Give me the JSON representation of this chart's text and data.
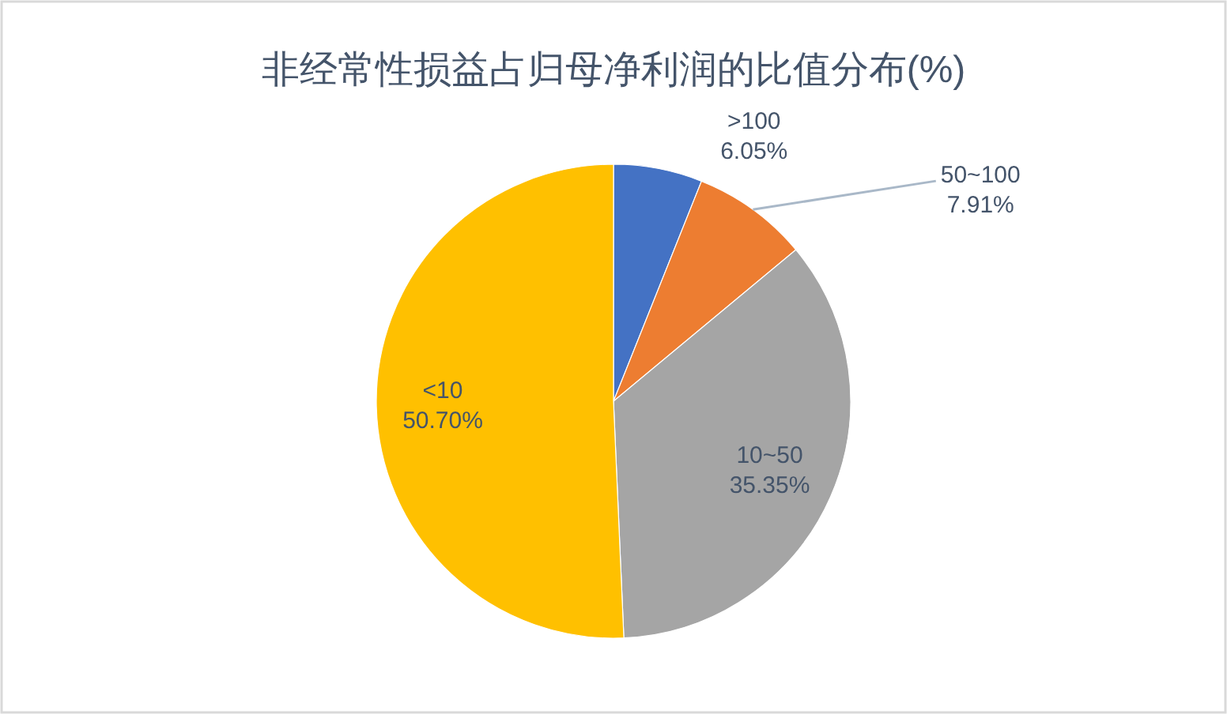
{
  "chart_data": {
    "type": "pie",
    "title": "非经常性损益占归母净利润的比值分布(%)",
    "categories": [
      ">100",
      "50~100",
      "10~50",
      "<10"
    ],
    "values": [
      6.05,
      7.91,
      35.35,
      50.7
    ],
    "colors": [
      "#4472c4",
      "#ed7d31",
      "#a5a5a5",
      "#ffc000"
    ],
    "value_labels": [
      "6.05%",
      "7.91%",
      "35.35%",
      "50.70%"
    ]
  }
}
